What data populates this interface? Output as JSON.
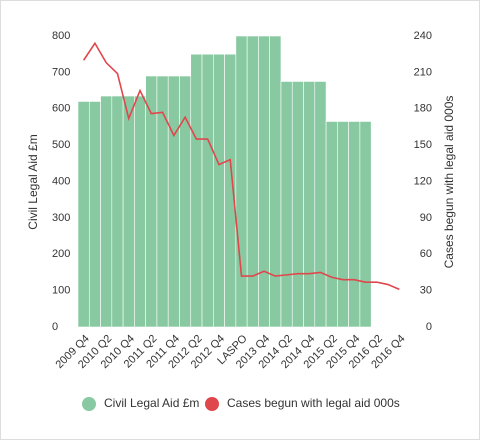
{
  "chart_data": {
    "type": "bar-line",
    "categories": [
      "2009 Q4",
      null,
      "2010 Q2",
      null,
      "2010 Q4",
      null,
      "2011 Q2",
      null,
      "2011 Q4",
      null,
      "2012 Q2",
      null,
      "2012 Q4",
      null,
      "LASPO",
      null,
      "2013 Q4",
      null,
      "2014 Q2",
      null,
      "2014 Q4",
      null,
      "2015 Q2",
      null,
      "2015 Q4",
      null,
      "2016 Q2",
      null,
      "2016 Q4"
    ],
    "series": [
      {
        "name": "Civil Legal Aid £m",
        "color": "#88c9a1",
        "axis": "y",
        "values": [
          620,
          620,
          635,
          635,
          635,
          635,
          690,
          690,
          690,
          690,
          750,
          750,
          750,
          750,
          800,
          800,
          800,
          800,
          675,
          675,
          675,
          675,
          565,
          565,
          565,
          565,
          null,
          null,
          null
        ]
      },
      {
        "name": "Cases begun with legal aid 000s",
        "color": "#e0474c",
        "axis": "y2",
        "values": [
          220,
          234,
          218,
          209,
          172,
          195,
          176,
          177,
          158,
          173,
          155,
          155,
          134,
          138,
          42,
          42,
          46,
          42,
          43,
          44,
          44,
          45,
          41,
          39,
          39,
          37,
          37,
          35,
          31
        ]
      }
    ],
    "y_label": "Civil Legal Aid £m",
    "y2_label": "Cases begun with legal aid 000s",
    "ylim": [
      0,
      800
    ],
    "yticks": [
      0,
      100,
      200,
      300,
      400,
      500,
      600,
      700,
      800
    ],
    "y2lim": [
      0,
      240
    ],
    "y2ticks": [
      0,
      30,
      60,
      90,
      120,
      150,
      180,
      210,
      240
    ]
  }
}
